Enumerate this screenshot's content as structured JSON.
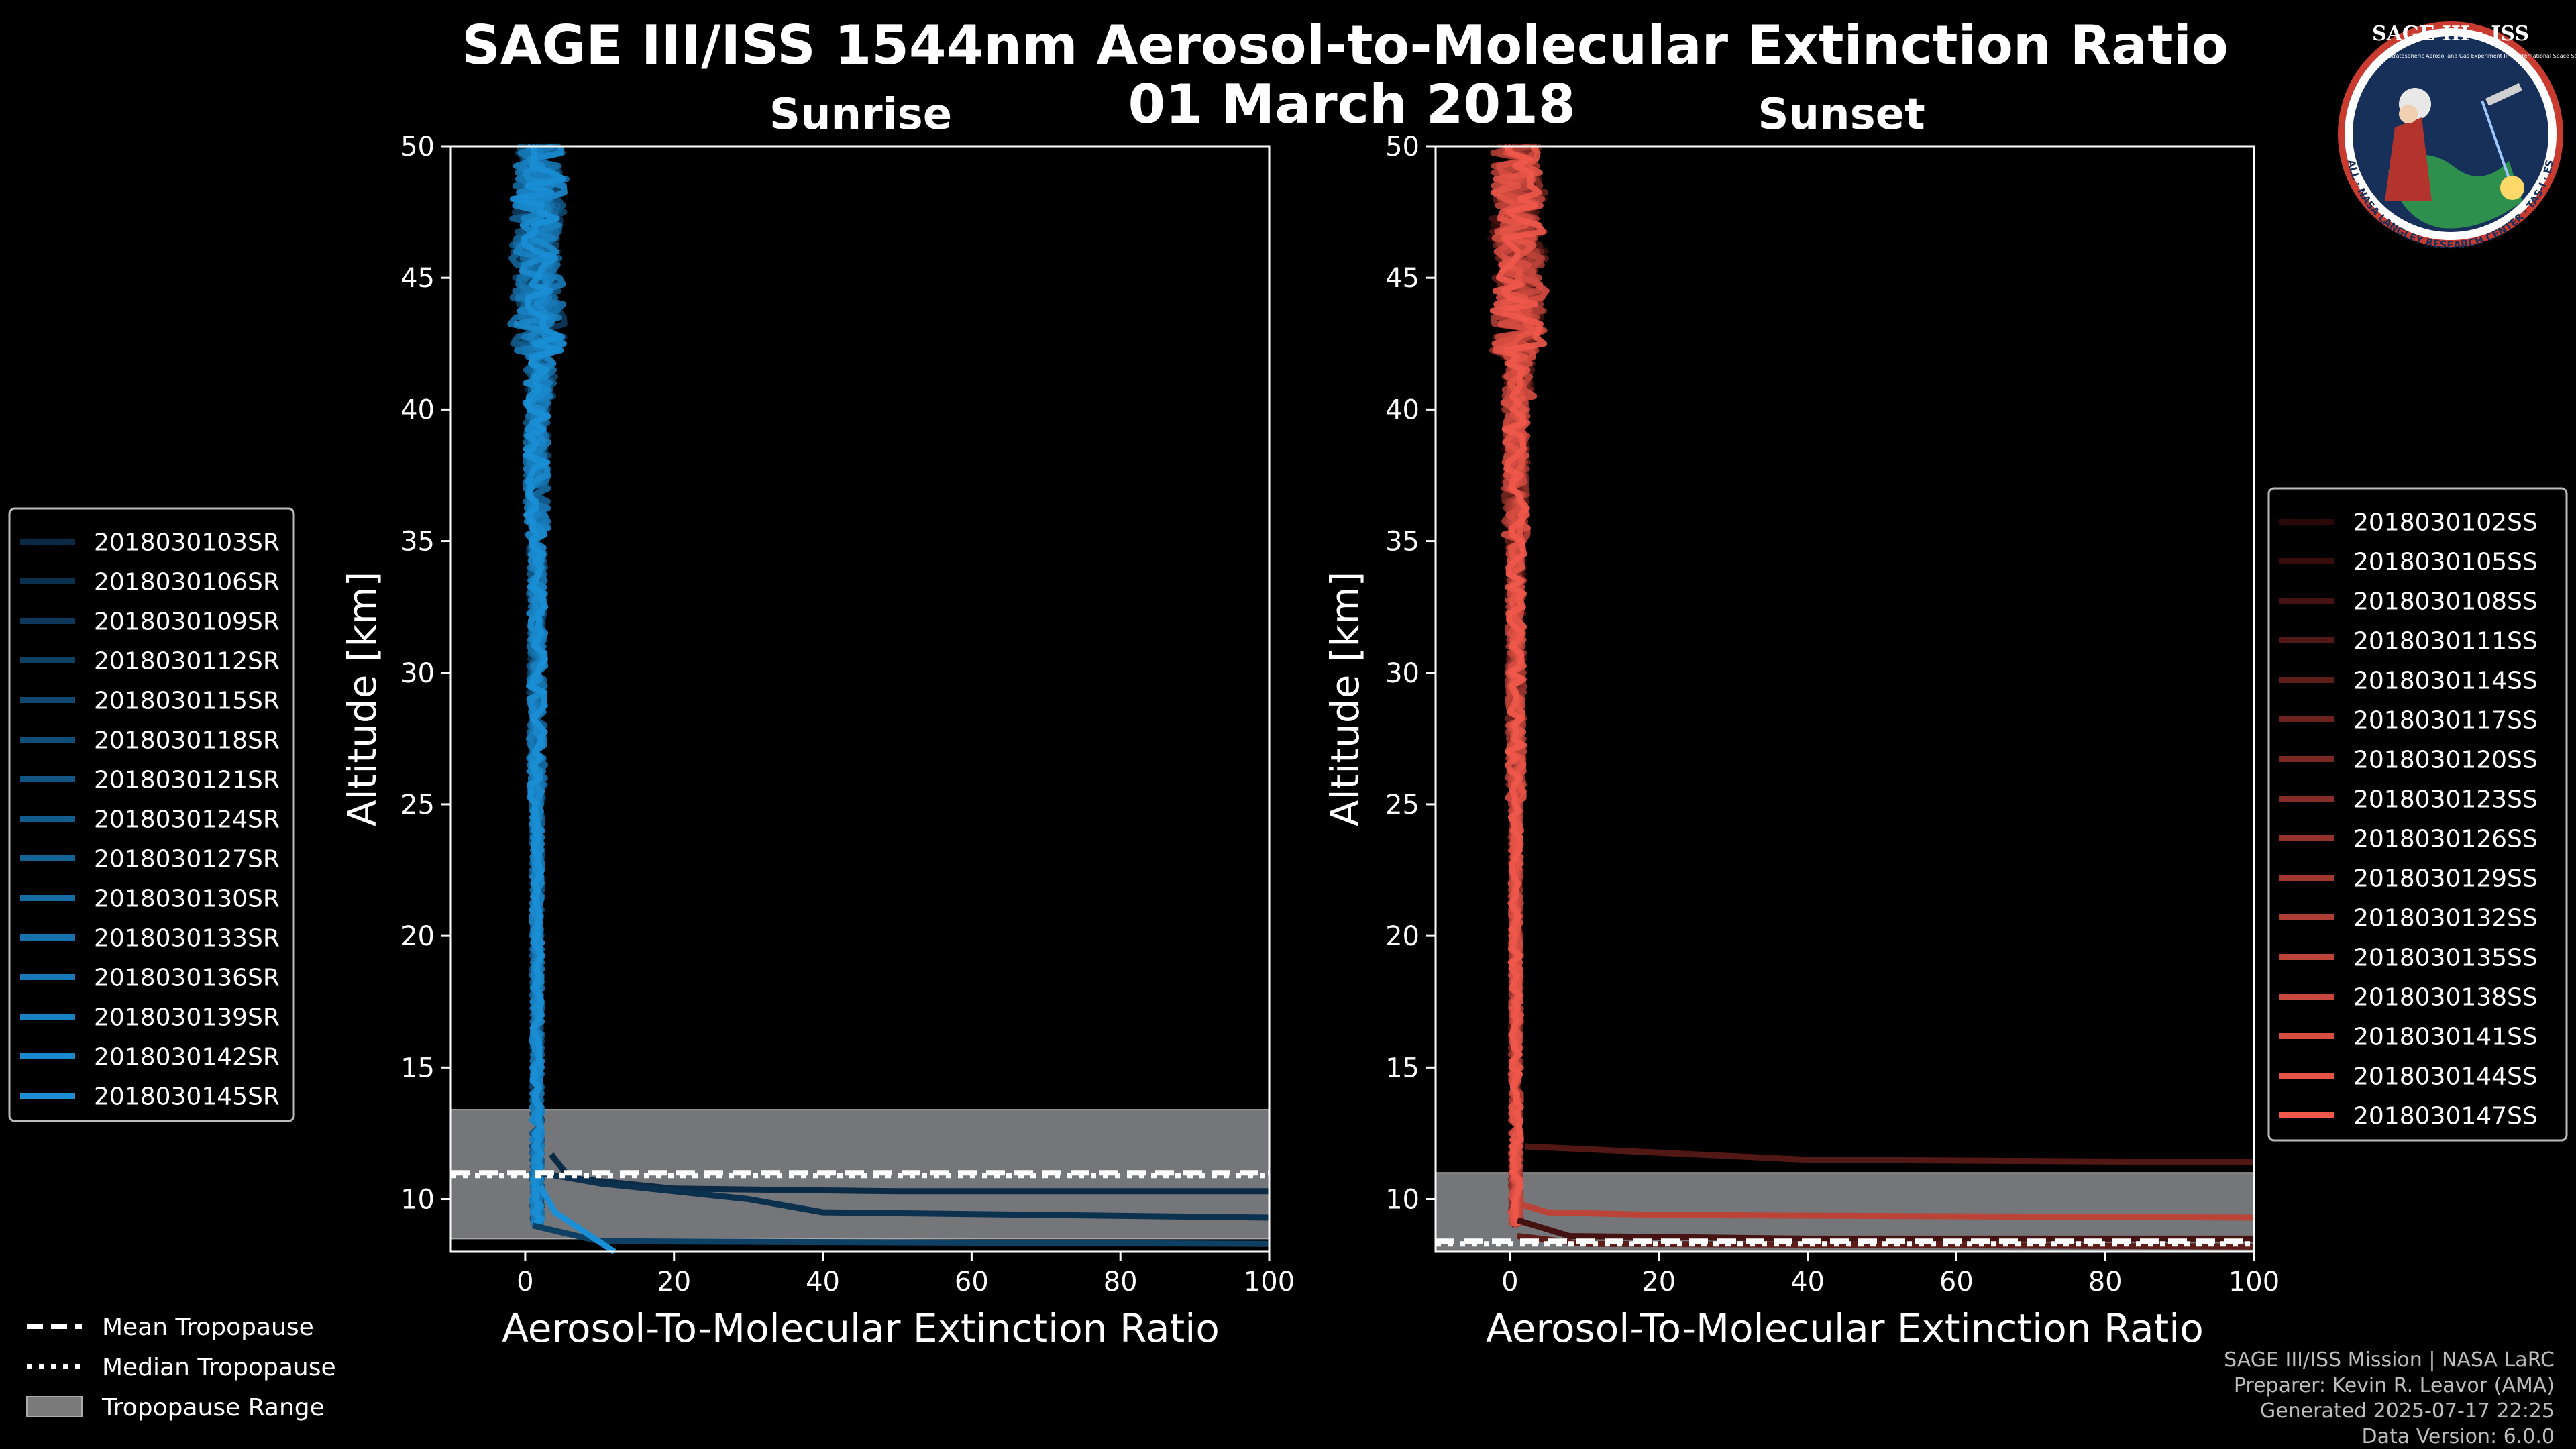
{
  "figure": {
    "title_line1": "SAGE III/ISS 1544nm Aerosol-to-Molecular Extinction Ratio",
    "title_line2": "01 March 2018",
    "logo": {
      "title": "SAGE III · ISS",
      "subtitle_left": "Stratospheric Aerosol and Gas Experiment III",
      "subtitle_right": "International Space Station",
      "ring_text": "BALL · NASA LANGLEY RESEARCH CENTER · TAS-I · ESA"
    },
    "credits": [
      "SAGE III/ISS Mission | NASA LaRC",
      "Preparer: Kevin R. Leavor (AMA)",
      "Generated 2025-07-17 22:25",
      "Data Version: 6.0.0"
    ],
    "bottom_legend": [
      {
        "label": "Mean Tropopause",
        "style": "dashed"
      },
      {
        "label": "Median Tropopause",
        "style": "dotted"
      },
      {
        "label": "Tropopause Range",
        "style": "patch"
      }
    ]
  },
  "chart_data": [
    {
      "type": "line",
      "panel": "sunrise",
      "title": "Sunrise",
      "xlabel": "Aerosol-To-Molecular Extinction Ratio",
      "ylabel": "Altitude [km]",
      "xlim": [
        -10,
        100
      ],
      "ylim": [
        8,
        50
      ],
      "xticks": [
        0,
        20,
        40,
        60,
        80,
        100
      ],
      "yticks": [
        10,
        15,
        20,
        25,
        30,
        35,
        40,
        45,
        50
      ],
      "tropopause": {
        "mean": 11.0,
        "median": 10.9,
        "range": [
          8.5,
          13.4
        ]
      },
      "color_dark": "#0b2a45",
      "color_light": "#1a8fd6",
      "legend": [
        "2018030103SR",
        "2018030106SR",
        "2018030109SR",
        "2018030112SR",
        "2018030115SR",
        "2018030118SR",
        "2018030121SR",
        "2018030124SR",
        "2018030127SR",
        "2018030130SR",
        "2018030133SR",
        "2018030136SR",
        "2018030139SR",
        "2018030142SR",
        "2018030145SR"
      ],
      "anomalies": [
        {
          "name": "2018030103SR",
          "points": [
            [
              3.5,
              11.7
            ],
            [
              6,
              10.8
            ],
            [
              20,
              10.4
            ],
            [
              50,
              10.3
            ],
            [
              100,
              10.3
            ]
          ]
        },
        {
          "name": "2018030106SR",
          "points": [
            [
              2,
              11.0
            ],
            [
              10,
              10.6
            ],
            [
              30,
              10.0
            ],
            [
              40,
              9.5
            ],
            [
              100,
              9.3
            ]
          ]
        },
        {
          "name": "2018030112SR",
          "points": [
            [
              1,
              9.0
            ],
            [
              10,
              8.4
            ],
            [
              100,
              8.3
            ]
          ]
        },
        {
          "name": "2018030145SR",
          "points": [
            [
              12,
              8.0
            ],
            [
              4,
              9.5
            ],
            [
              2,
              10.5
            ]
          ]
        }
      ]
    },
    {
      "type": "line",
      "panel": "sunset",
      "title": "Sunset",
      "xlabel": "Aerosol-To-Molecular Extinction Ratio",
      "ylabel": "Altitude [km]",
      "xlim": [
        -10,
        100
      ],
      "ylim": [
        8,
        50
      ],
      "xticks": [
        0,
        20,
        40,
        60,
        80,
        100
      ],
      "yticks": [
        10,
        15,
        20,
        25,
        30,
        35,
        40,
        45,
        50
      ],
      "tropopause": {
        "mean": 8.4,
        "median": 8.3,
        "range": [
          8.0,
          11.0
        ]
      },
      "color_dark": "#2a0808",
      "color_light": "#f0584a",
      "legend": [
        "2018030102SS",
        "2018030105SS",
        "2018030108SS",
        "2018030111SS",
        "2018030114SS",
        "2018030117SS",
        "2018030120SS",
        "2018030123SS",
        "2018030126SS",
        "2018030129SS",
        "2018030132SS",
        "2018030135SS",
        "2018030138SS",
        "2018030141SS",
        "2018030144SS",
        "2018030147SS"
      ],
      "anomalies": [
        {
          "name": "2018030111SS",
          "points": [
            [
              2,
              12.0
            ],
            [
              10,
              11.9
            ],
            [
              40,
              11.5
            ],
            [
              100,
              11.4
            ]
          ]
        },
        {
          "name": "2018030135SS",
          "points": [
            [
              1.5,
              9.8
            ],
            [
              5,
              9.5
            ],
            [
              20,
              9.4
            ],
            [
              100,
              9.3
            ]
          ]
        },
        {
          "name": "2018030108SS",
          "points": [
            [
              1,
              9.2
            ],
            [
              8,
              8.6
            ],
            [
              40,
              8.5
            ],
            [
              100,
              8.5
            ]
          ]
        },
        {
          "name": "2018030114SS",
          "points": [
            [
              1,
              8.6
            ],
            [
              10,
              8.3
            ],
            [
              100,
              8.2
            ]
          ]
        }
      ]
    }
  ]
}
